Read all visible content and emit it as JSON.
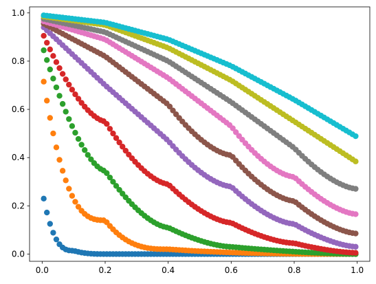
{
  "chart_data": {
    "type": "scatter",
    "title": "",
    "xlabel": "",
    "ylabel": "",
    "xlim": [
      -0.04,
      1.04
    ],
    "ylim": [
      -0.03,
      1.025
    ],
    "grid": false,
    "legend": "none",
    "x_ticks": [
      "0.0",
      "0.2",
      "0.4",
      "0.6",
      "0.8",
      "1.0"
    ],
    "y_ticks": [
      "0.0",
      "0.2",
      "0.4",
      "0.6",
      "0.8",
      "1.0"
    ],
    "x_range": [
      0.005,
      0.995
    ],
    "num_points": 100,
    "series": [
      {
        "color": "#1f77b4",
        "exponent": 30,
        "values_at_ticks": {
          "0.005": 0.23,
          "0.1": 0.014,
          "0.2": 0.0,
          "1.0": 0.0
        }
      },
      {
        "color": "#ff7f0e",
        "exponent": 8.5,
        "values_at_ticks": {
          "0.005": 0.715,
          "0.2": 0.14,
          "0.4": 0.02,
          "1.0": 0.0
        }
      },
      {
        "color": "#2ca02c",
        "exponent": 4.4,
        "values_at_ticks": {
          "0.005": 0.845,
          "0.2": 0.345,
          "0.4": 0.11,
          "0.6": 0.03,
          "1.0": 0.0
        }
      },
      {
        "color": "#d62728",
        "exponent": 2.6,
        "values_at_ticks": {
          "0.005": 0.905,
          "0.2": 0.55,
          "0.4": 0.29,
          "0.6": 0.13,
          "0.8": 0.045,
          "1.0": 0.005
        }
      },
      {
        "color": "#9467bd",
        "exponent": 1.75,
        "values_at_ticks": {
          "0.005": 0.94,
          "0.2": 0.7,
          "0.4": 0.47,
          "0.6": 0.28,
          "0.8": 0.125,
          "1.0": 0.03
        }
      },
      {
        "color": "#8c564b",
        "exponent": 1.3,
        "values_at_ticks": {
          "0.005": 0.955,
          "0.2": 0.82,
          "0.4": 0.62,
          "0.6": 0.41,
          "0.8": 0.22,
          "1.0": 0.085
        }
      },
      {
        "color": "#e377c2",
        "exponent": 1.0,
        "values_at_ticks": {
          "0.005": 0.965,
          "0.2": 0.89,
          "0.4": 0.73,
          "0.6": 0.53,
          "0.8": 0.32,
          "1.0": 0.165
        }
      },
      {
        "color": "#7f7f7f",
        "exponent": 0.72,
        "values_at_ticks": {
          "0.005": 0.975,
          "0.2": 0.92,
          "0.4": 0.8,
          "0.6": 0.63,
          "0.8": 0.44,
          "1.0": 0.27
        }
      },
      {
        "color": "#bcbd22",
        "exponent": 0.55,
        "values_at_ticks": {
          "0.005": 0.985,
          "0.2": 0.95,
          "0.4": 0.855,
          "0.6": 0.72,
          "0.8": 0.55,
          "1.0": 0.38
        }
      },
      {
        "color": "#17becf",
        "exponent": 0.45,
        "values_at_ticks": {
          "0.005": 0.99,
          "0.2": 0.96,
          "0.4": 0.89,
          "0.6": 0.78,
          "0.8": 0.64,
          "1.0": 0.485
        }
      }
    ]
  }
}
